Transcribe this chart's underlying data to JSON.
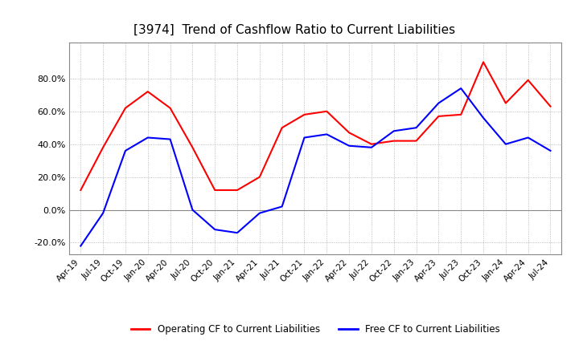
{
  "title": "[3974]  Trend of Cashflow Ratio to Current Liabilities",
  "title_fontsize": 11,
  "title_fontweight": "normal",
  "ylim": [
    -0.27,
    1.02
  ],
  "yticks": [
    -0.2,
    0.0,
    0.2,
    0.4,
    0.6,
    0.8
  ],
  "ytick_labels": [
    "-20.0%",
    "0.0%",
    "20.0%",
    "40.0%",
    "60.0%",
    "80.0%"
  ],
  "background_color": "#ffffff",
  "grid_color": "#aaaaaa",
  "operating_color": "#ff0000",
  "free_color": "#0000ff",
  "legend_labels": [
    "Operating CF to Current Liabilities",
    "Free CF to Current Liabilities"
  ],
  "x_labels": [
    "Apr-19",
    "Jul-19",
    "Oct-19",
    "Jan-20",
    "Apr-20",
    "Jul-20",
    "Oct-20",
    "Jan-21",
    "Apr-21",
    "Jul-21",
    "Oct-21",
    "Jan-22",
    "Apr-22",
    "Jul-22",
    "Oct-22",
    "Jan-23",
    "Apr-23",
    "Jul-23",
    "Oct-23",
    "Jan-24",
    "Apr-24",
    "Jul-24"
  ],
  "operating_cf": [
    0.12,
    0.38,
    0.62,
    0.72,
    0.62,
    0.38,
    0.12,
    0.12,
    0.2,
    0.5,
    0.58,
    0.6,
    0.47,
    0.4,
    0.42,
    0.42,
    0.57,
    0.58,
    0.9,
    0.65,
    0.79,
    0.63
  ],
  "free_cf": [
    -0.22,
    -0.02,
    0.36,
    0.44,
    0.43,
    0.0,
    -0.12,
    -0.14,
    -0.02,
    0.02,
    0.44,
    0.46,
    0.39,
    0.38,
    0.48,
    0.5,
    0.65,
    0.74,
    0.56,
    0.4,
    0.44,
    0.36
  ]
}
